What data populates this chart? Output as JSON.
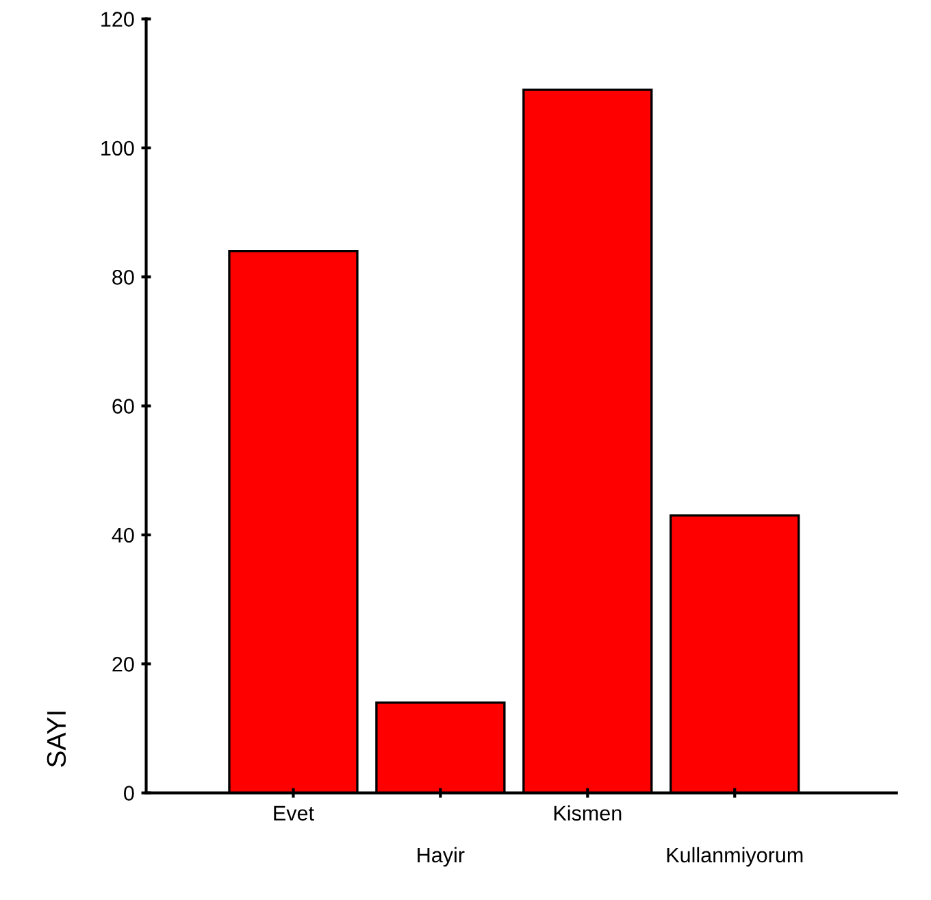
{
  "chart_data": {
    "type": "bar",
    "ylabel": "SAYI",
    "categories": [
      "Evet",
      "Hayir",
      "Kismen",
      "Kullanmiyorum"
    ],
    "values": [
      84,
      14,
      109,
      43
    ],
    "color": "#ff0000",
    "ylim": [
      0,
      120
    ],
    "yticks": [
      0,
      20,
      40,
      60,
      80,
      100,
      120
    ],
    "grid": false,
    "legend": false
  }
}
